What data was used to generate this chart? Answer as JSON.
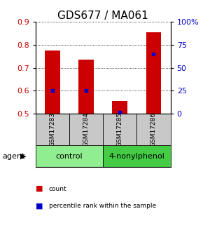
{
  "title": "GDS677 / MA061",
  "samples": [
    "GSM17283",
    "GSM17284",
    "GSM17285",
    "GSM17286"
  ],
  "red_values": [
    0.775,
    0.735,
    0.555,
    0.855
  ],
  "blue_values": [
    25,
    25,
    2,
    65
  ],
  "ylim_left": [
    0.5,
    0.9
  ],
  "ylim_right": [
    0,
    100
  ],
  "yticks_left": [
    0.5,
    0.6,
    0.7,
    0.8,
    0.9
  ],
  "yticks_right": [
    0,
    25,
    50,
    75,
    100
  ],
  "ytick_labels_right": [
    "0",
    "25",
    "50",
    "75",
    "100%"
  ],
  "groups": [
    {
      "label": "control",
      "indices": [
        0,
        1
      ],
      "color": "#90EE90"
    },
    {
      "label": "4-nonylphenol",
      "indices": [
        2,
        3
      ],
      "color": "#44CC44"
    }
  ],
  "bar_color": "#CC0000",
  "dot_color": "#0000CC",
  "sample_bg_color": "#C8C8C8",
  "bar_width": 0.45,
  "title_fontsize": 11,
  "tick_fontsize": 8,
  "sample_fontsize": 6.5,
  "group_fontsize": 8,
  "legend_fontsize": 6.5
}
